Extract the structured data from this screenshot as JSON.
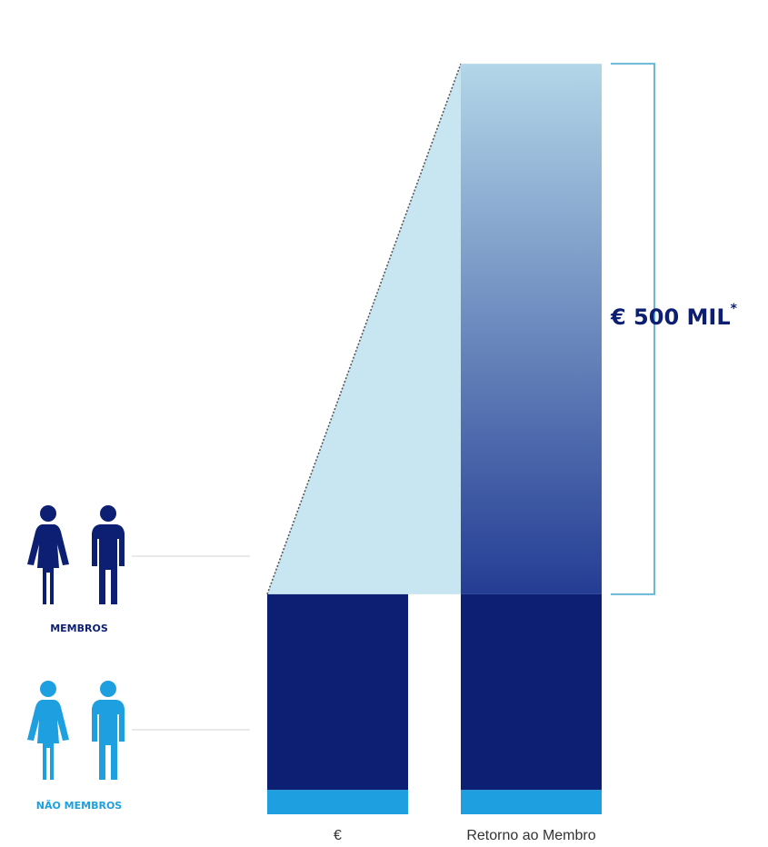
{
  "chart_data": {
    "type": "bar",
    "categories": [
      "€",
      "Retorno ao Membro"
    ],
    "series": [
      {
        "key": "nao_membros",
        "values": [
          1,
          1
        ]
      },
      {
        "key": "membros",
        "values": [
          8,
          8
        ]
      },
      {
        "key": "retorno",
        "values": [
          0,
          21.7
        ]
      }
    ],
    "annotation": {
      "text": "€ 500 MIL",
      "marker": "*"
    },
    "legend_groups": [
      {
        "label": "MEMBROS",
        "series": "membros",
        "color": "#0c1f73",
        "icon": "man-woman-icon"
      },
      {
        "label": "NÃO MEMBROS",
        "series": "nao_membros",
        "color": "#1ea0e0",
        "icon": "man-woman-icon"
      }
    ],
    "colors": {
      "membros": "#0c1f73",
      "nao_membros": "#1ea0e0",
      "retorno_top": "#b3d6e8",
      "retorno_bottom": "#243d94",
      "projection": "#c7e6f2",
      "bracket": "#6ab7d6",
      "guide_line": "#dcdcdc"
    }
  }
}
